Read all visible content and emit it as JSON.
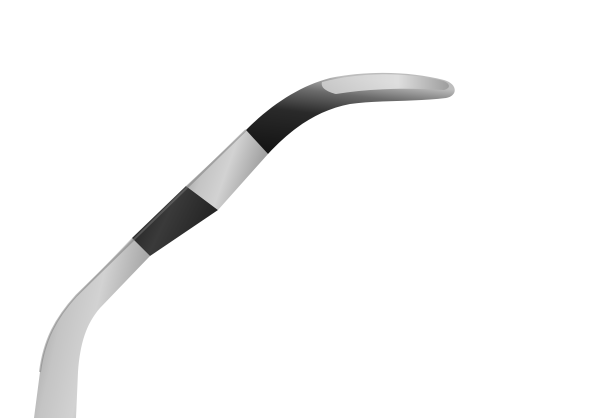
{
  "scene": {
    "subject": "curved-surgical-probe",
    "background_color": "#ffffff",
    "colors": {
      "shaft_light": "#c9c9c9",
      "shaft_mid": "#a8a8a8",
      "shaft_dark": "#8a8a8a",
      "band_dark": "#2a2a2a",
      "tip_dark": "#1c1c1c",
      "tip_highlight": "#d8d8d8"
    }
  }
}
